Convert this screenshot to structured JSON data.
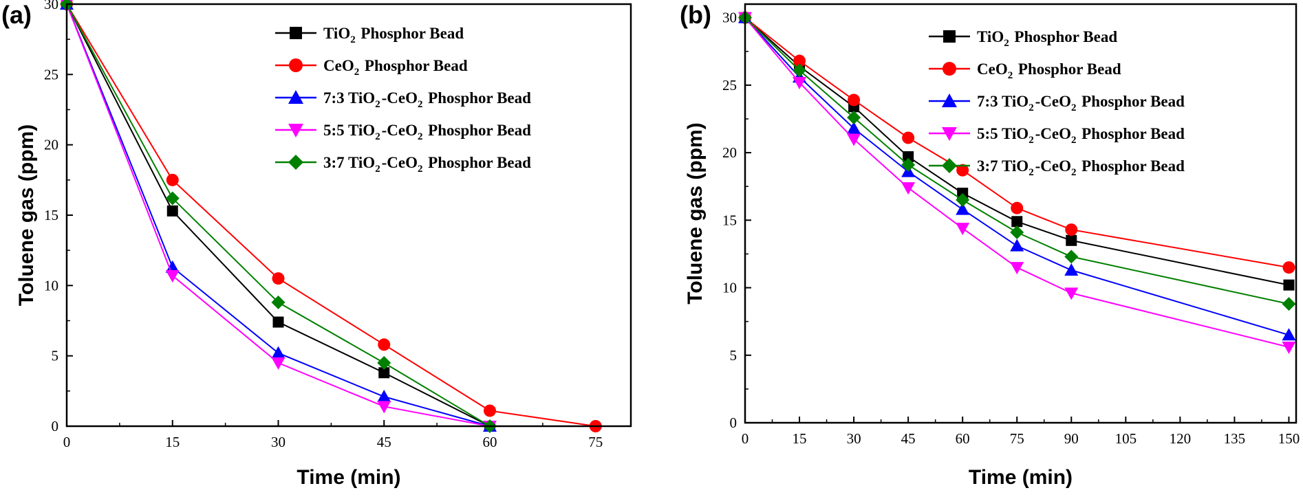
{
  "chart_data": [
    {
      "type": "line",
      "panel_label": "(a)",
      "xlabel": "Time (min)",
      "ylabel": "Toluene gas (ppm)",
      "xlim": [
        0,
        80
      ],
      "ylim": [
        0,
        30
      ],
      "x_ticks": [
        0,
        15,
        30,
        45,
        60,
        75
      ],
      "y_ticks": [
        0,
        5,
        10,
        15,
        20,
        25,
        30
      ],
      "legend_position": "top-right",
      "series": [
        {
          "name": "TiO₂ Phosphor Bead",
          "color": "#000000",
          "marker": "square",
          "x": [
            0,
            15,
            30,
            45,
            60
          ],
          "values": [
            30,
            15.3,
            7.4,
            3.8,
            0
          ]
        },
        {
          "name": "CeO₂ Phosphor Bead",
          "color": "#ff0000",
          "marker": "circle",
          "x": [
            0,
            15,
            30,
            45,
            60,
            75
          ],
          "values": [
            30,
            17.5,
            10.5,
            5.8,
            1.1,
            0
          ]
        },
        {
          "name": "7:3 TiO₂-CeO₂ Phosphor Bead",
          "color": "#0000ff",
          "marker": "triangle-up",
          "x": [
            0,
            15,
            30,
            45,
            60
          ],
          "values": [
            30,
            11.3,
            5.2,
            2.1,
            0
          ]
        },
        {
          "name": "5:5 TiO₂-CeO₂ Phosphor Bead",
          "color": "#ff00ff",
          "marker": "triangle-down",
          "x": [
            0,
            15,
            30,
            45,
            60
          ],
          "values": [
            30,
            10.7,
            4.5,
            1.4,
            0
          ]
        },
        {
          "name": "3:7 TiO₂-CeO₂ Phosphor Bead",
          "color": "#008000",
          "marker": "diamond",
          "x": [
            0,
            15,
            30,
            45,
            60
          ],
          "values": [
            30,
            16.2,
            8.8,
            4.5,
            0
          ]
        }
      ]
    },
    {
      "type": "line",
      "panel_label": "(b)",
      "xlabel": "Time (min)",
      "ylabel": "Toluene gas (ppm)",
      "xlim": [
        0,
        152
      ],
      "ylim": [
        0,
        31
      ],
      "x_ticks": [
        0,
        15,
        30,
        45,
        60,
        75,
        90,
        105,
        120,
        135,
        150
      ],
      "y_ticks": [
        0,
        5,
        10,
        15,
        20,
        25,
        30
      ],
      "legend_position": "top-right",
      "series": [
        {
          "name": "TiO₂ Phosphor Bead",
          "color": "#000000",
          "marker": "square",
          "x": [
            0,
            15,
            30,
            45,
            60,
            75,
            90,
            150
          ],
          "values": [
            30,
            26.4,
            23.4,
            19.7,
            17.0,
            14.9,
            13.5,
            10.2
          ]
        },
        {
          "name": "CeO₂ Phosphor Bead",
          "color": "#ff0000",
          "marker": "circle",
          "x": [
            0,
            15,
            30,
            45,
            60,
            75,
            90,
            150
          ],
          "values": [
            30,
            26.8,
            23.9,
            21.1,
            18.7,
            15.9,
            14.3,
            11.5
          ]
        },
        {
          "name": "7:3 TiO₂-CeO₂ Phosphor Bead",
          "color": "#0000ff",
          "marker": "triangle-up",
          "x": [
            0,
            15,
            30,
            45,
            60,
            75,
            90,
            150
          ],
          "values": [
            30,
            25.6,
            21.8,
            18.6,
            15.8,
            13.1,
            11.3,
            6.5
          ]
        },
        {
          "name": "5:5 TiO₂-CeO₂ Phosphor Bead",
          "color": "#ff00ff",
          "marker": "triangle-down",
          "x": [
            0,
            15,
            30,
            45,
            60,
            75,
            90,
            150
          ],
          "values": [
            30,
            25.2,
            21.0,
            17.4,
            14.4,
            11.5,
            9.6,
            5.6
          ]
        },
        {
          "name": "3:7 TiO₂-CeO₂ Phosphor Bead",
          "color": "#008000",
          "marker": "diamond",
          "x": [
            0,
            15,
            30,
            45,
            60,
            75,
            90,
            150
          ],
          "values": [
            30,
            26.1,
            22.6,
            19.1,
            16.5,
            14.1,
            12.3,
            8.8
          ]
        }
      ]
    }
  ]
}
